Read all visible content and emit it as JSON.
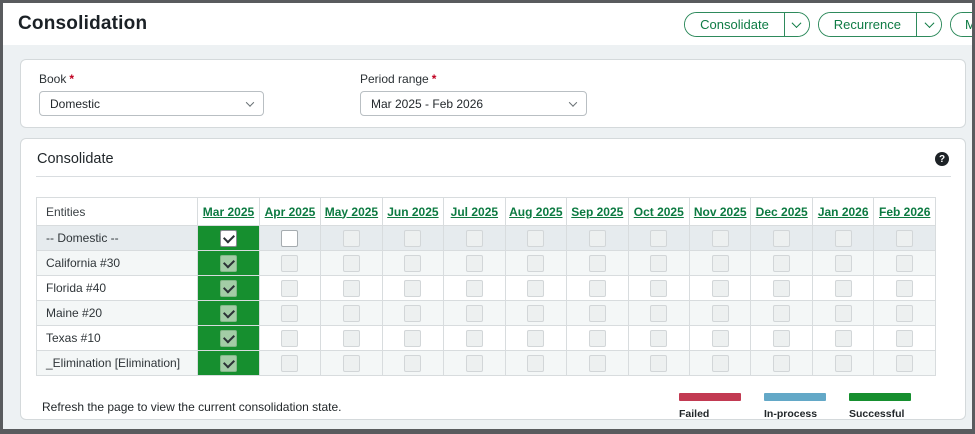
{
  "header": {
    "title": "Consolidation",
    "actions": {
      "consolidate": "Consolidate",
      "recurrence": "Recurrence",
      "partial": "M"
    }
  },
  "filters": {
    "book": {
      "label": "Book",
      "required": "*",
      "value": "Domestic"
    },
    "period_range": {
      "label": "Period range",
      "required": "*",
      "value": "Mar 2025 - Feb 2026"
    }
  },
  "section": {
    "title": "Consolidate",
    "help_icon": "?"
  },
  "table": {
    "entity_header": "Entities",
    "months": [
      "Mar 2025",
      "Apr 2025",
      "May 2025",
      "Jun 2025",
      "Jul 2025",
      "Aug 2025",
      "Sep 2025",
      "Oct 2025",
      "Nov 2025",
      "Dec 2025",
      "Jan 2026",
      "Feb 2026"
    ],
    "month_status": [
      "successful",
      "",
      "",
      "",
      "",
      "",
      "",
      "",
      "",
      "",
      "",
      ""
    ],
    "rows": [
      {
        "entity": "-- Domestic --",
        "cells": [
          "checked-active",
          "unchecked-active",
          "unchecked-disabled",
          "unchecked-disabled",
          "unchecked-disabled",
          "unchecked-disabled",
          "unchecked-disabled",
          "unchecked-disabled",
          "unchecked-disabled",
          "unchecked-disabled",
          "unchecked-disabled",
          "unchecked-disabled"
        ]
      },
      {
        "entity": "California #30",
        "cells": [
          "checked-disabled",
          "unchecked-disabled",
          "unchecked-disabled",
          "unchecked-disabled",
          "unchecked-disabled",
          "unchecked-disabled",
          "unchecked-disabled",
          "unchecked-disabled",
          "unchecked-disabled",
          "unchecked-disabled",
          "unchecked-disabled",
          "unchecked-disabled"
        ]
      },
      {
        "entity": "Florida #40",
        "cells": [
          "checked-disabled",
          "unchecked-disabled",
          "unchecked-disabled",
          "unchecked-disabled",
          "unchecked-disabled",
          "unchecked-disabled",
          "unchecked-disabled",
          "unchecked-disabled",
          "unchecked-disabled",
          "unchecked-disabled",
          "unchecked-disabled",
          "unchecked-disabled"
        ]
      },
      {
        "entity": "Maine #20",
        "cells": [
          "checked-disabled",
          "unchecked-disabled",
          "unchecked-disabled",
          "unchecked-disabled",
          "unchecked-disabled",
          "unchecked-disabled",
          "unchecked-disabled",
          "unchecked-disabled",
          "unchecked-disabled",
          "unchecked-disabled",
          "unchecked-disabled",
          "unchecked-disabled"
        ]
      },
      {
        "entity": "Texas #10",
        "cells": [
          "checked-disabled",
          "unchecked-disabled",
          "unchecked-disabled",
          "unchecked-disabled",
          "unchecked-disabled",
          "unchecked-disabled",
          "unchecked-disabled",
          "unchecked-disabled",
          "unchecked-disabled",
          "unchecked-disabled",
          "unchecked-disabled",
          "unchecked-disabled"
        ]
      },
      {
        "entity": "_Elimination [Elimination]",
        "cells": [
          "checked-disabled",
          "unchecked-disabled",
          "unchecked-disabled",
          "unchecked-disabled",
          "unchecked-disabled",
          "unchecked-disabled",
          "unchecked-disabled",
          "unchecked-disabled",
          "unchecked-disabled",
          "unchecked-disabled",
          "unchecked-disabled",
          "unchecked-disabled"
        ]
      }
    ]
  },
  "footer": {
    "note": "Refresh the page to view the current consolidation state."
  },
  "status_colors": {
    "successful": "#168f2f",
    "in_process": "#63a8c7",
    "failed": "#c23a52"
  },
  "legend": {
    "items": [
      {
        "label": "Failed",
        "color": "#c23a52"
      },
      {
        "label": "In-process",
        "color": "#63a8c7"
      },
      {
        "label": "Successful",
        "color": "#168f2f"
      }
    ]
  }
}
